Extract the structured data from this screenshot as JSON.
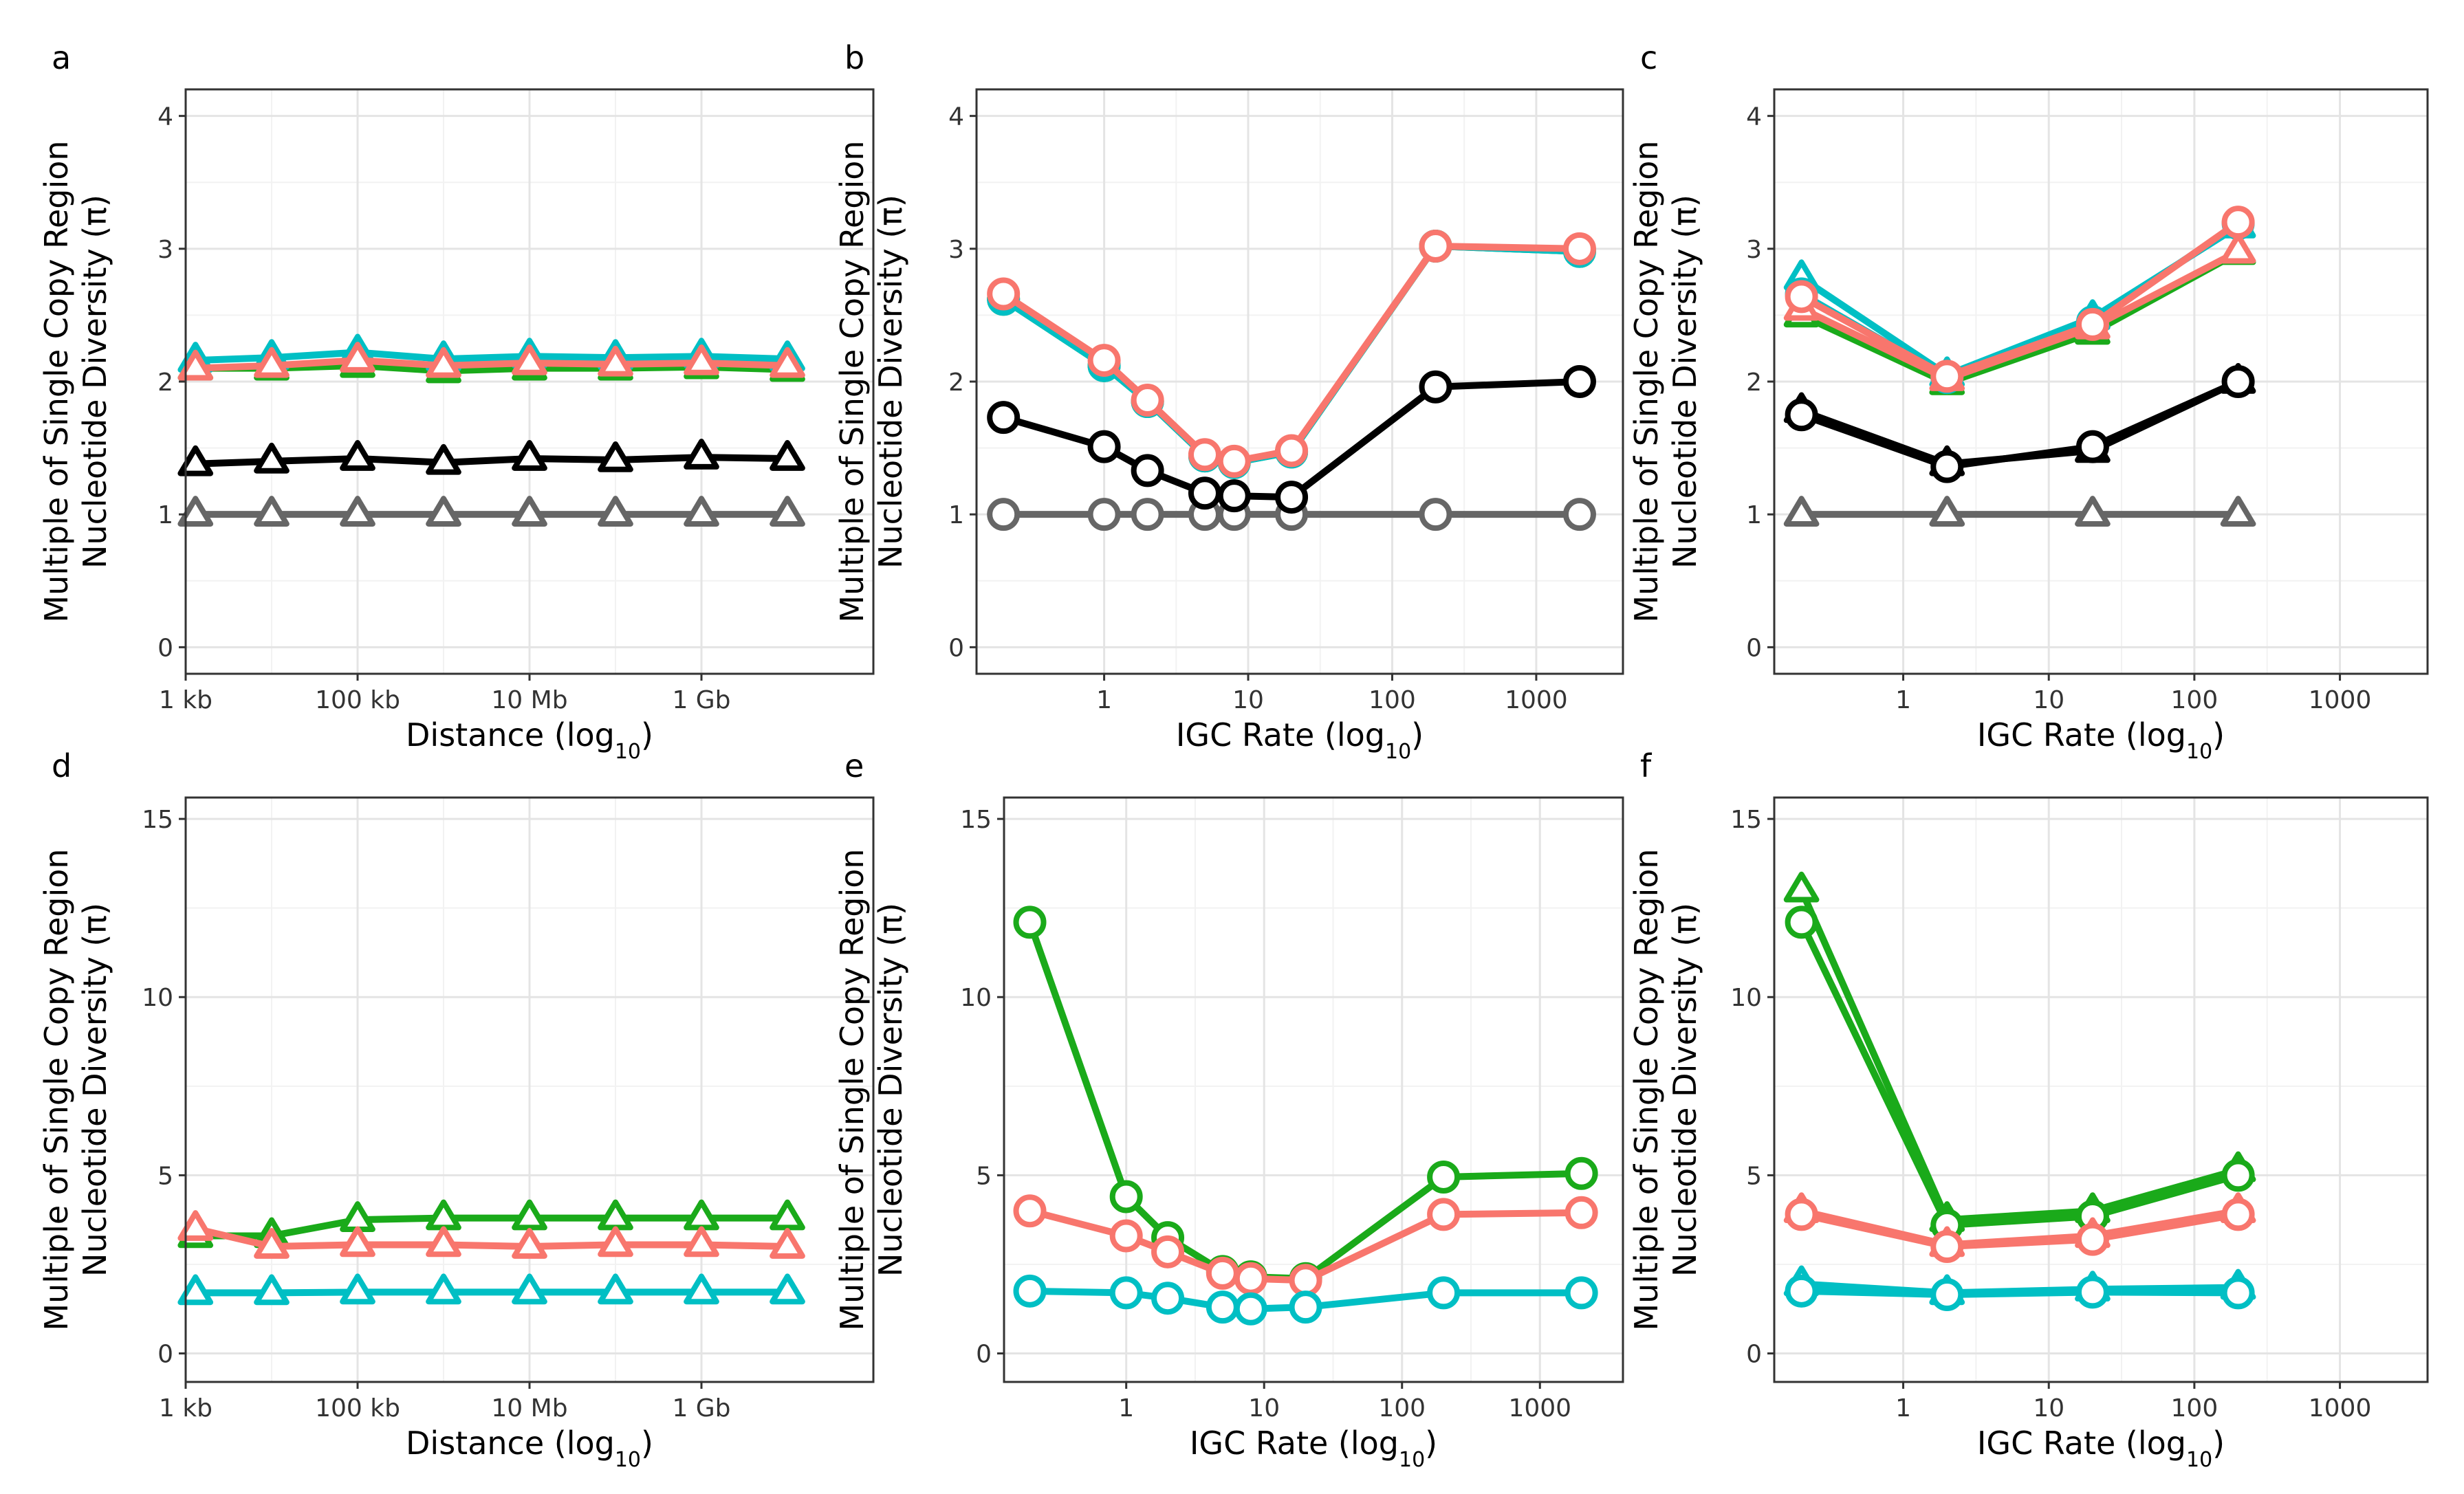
{
  "figure": {
    "ylabel_line1": "Multiple of Single Copy Region",
    "ylabel_line2": "Nucleotide Diversity (π)",
    "colors": {
      "black": "#000000",
      "grey": "#666666",
      "green": "#1AAA1A",
      "red": "#F8766D",
      "cyan": "#00BFC4"
    }
  },
  "chart_data": [
    {
      "panel": "a",
      "type": "line",
      "xlabel": "Distance (log",
      "xlabel_sub": "10",
      "xlabel_end": ")",
      "xscale": "log",
      "xlim": [
        1000,
        100000000000.0
      ],
      "xticks": [
        {
          "v": 1000,
          "label": "1 kb"
        },
        {
          "v": 100000,
          "label": "100 kb"
        },
        {
          "v": 10000000,
          "label": "10 Mb"
        },
        {
          "v": 1000000000,
          "label": "1 Gb"
        }
      ],
      "ylim": [
        -0.2,
        4.2
      ],
      "yticks": [
        {
          "v": 0,
          "label": "0"
        },
        {
          "v": 1,
          "label": "1"
        },
        {
          "v": 2,
          "label": "2"
        },
        {
          "v": 3,
          "label": "3"
        },
        {
          "v": 4,
          "label": "4"
        }
      ],
      "series": [
        {
          "color": "grey",
          "marker": "triangle",
          "x": [
            1300,
            10000,
            100000,
            1000000,
            10000000,
            100000000,
            1000000000,
            10000000000
          ],
          "y": [
            1.0,
            1.0,
            1.0,
            1.0,
            1.0,
            1.0,
            1.0,
            1.0
          ]
        },
        {
          "color": "black",
          "marker": "triangle",
          "x": [
            1300,
            10000,
            100000,
            1000000,
            10000000,
            100000000,
            1000000000,
            10000000000
          ],
          "y": [
            1.38,
            1.4,
            1.42,
            1.39,
            1.42,
            1.41,
            1.43,
            1.42
          ]
        },
        {
          "color": "green",
          "marker": "triangle",
          "x": [
            1300,
            10000,
            100000,
            1000000,
            10000000,
            100000000,
            1000000000,
            10000000000
          ],
          "y": [
            2.1,
            2.1,
            2.12,
            2.08,
            2.1,
            2.1,
            2.11,
            2.09
          ]
        },
        {
          "color": "cyan",
          "marker": "triangle",
          "x": [
            1300,
            10000,
            100000,
            1000000,
            10000000,
            100000000,
            1000000000,
            10000000000
          ],
          "y": [
            2.16,
            2.18,
            2.22,
            2.17,
            2.19,
            2.18,
            2.19,
            2.17
          ]
        },
        {
          "color": "red",
          "marker": "triangle",
          "x": [
            1300,
            10000,
            100000,
            1000000,
            10000000,
            100000000,
            1000000000,
            10000000000
          ],
          "y": [
            2.1,
            2.12,
            2.16,
            2.12,
            2.14,
            2.13,
            2.14,
            2.12
          ]
        }
      ]
    },
    {
      "panel": "b",
      "type": "line",
      "xlabel": "IGC Rate (log",
      "xlabel_sub": "10",
      "xlabel_end": ")",
      "xscale": "log",
      "xlim": [
        0.13,
        4000
      ],
      "xticks": [
        {
          "v": 1,
          "label": "1"
        },
        {
          "v": 10,
          "label": "10"
        },
        {
          "v": 100,
          "label": "100"
        },
        {
          "v": 1000,
          "label": "1000"
        }
      ],
      "ylim": [
        -0.2,
        4.2
      ],
      "yticks": [
        {
          "v": 0,
          "label": "0"
        },
        {
          "v": 1,
          "label": "1"
        },
        {
          "v": 2,
          "label": "2"
        },
        {
          "v": 3,
          "label": "3"
        },
        {
          "v": 4,
          "label": "4"
        }
      ],
      "series": [
        {
          "color": "grey",
          "marker": "circle",
          "x": [
            0.2,
            1,
            2,
            5,
            8,
            20,
            200,
            2000
          ],
          "y": [
            1.0,
            1.0,
            1.0,
            1.0,
            1.0,
            1.0,
            1.0,
            1.0
          ]
        },
        {
          "color": "black",
          "marker": "circle",
          "x": [
            0.2,
            1,
            2,
            5,
            8,
            20,
            200,
            2000
          ],
          "y": [
            1.73,
            1.51,
            1.33,
            1.16,
            1.14,
            1.13,
            1.96,
            2.0
          ]
        },
        {
          "color": "green",
          "marker": "circle",
          "x": [
            0.2,
            1,
            2,
            5,
            8,
            20,
            200,
            2000
          ],
          "y": [
            2.62,
            2.12,
            1.85,
            1.44,
            1.39,
            1.47,
            3.02,
            2.98
          ]
        },
        {
          "color": "cyan",
          "marker": "circle",
          "x": [
            0.2,
            1,
            2,
            5,
            8,
            20,
            200,
            2000
          ],
          "y": [
            2.62,
            2.12,
            1.85,
            1.44,
            1.39,
            1.47,
            3.02,
            2.98
          ]
        },
        {
          "color": "red",
          "marker": "circle",
          "x": [
            0.2,
            1,
            2,
            5,
            8,
            20,
            200,
            2000
          ],
          "y": [
            2.66,
            2.16,
            1.86,
            1.45,
            1.4,
            1.48,
            3.02,
            3.0
          ]
        }
      ]
    },
    {
      "panel": "c",
      "type": "line",
      "xlabel": "IGC Rate (log",
      "xlabel_sub": "10",
      "xlabel_end": ")",
      "xscale": "log",
      "xlim": [
        0.13,
        4000
      ],
      "xticks": [
        {
          "v": 1,
          "label": "1"
        },
        {
          "v": 10,
          "label": "10"
        },
        {
          "v": 100,
          "label": "100"
        },
        {
          "v": 1000,
          "label": "1000"
        }
      ],
      "ylim": [
        -0.2,
        4.2
      ],
      "yticks": [
        {
          "v": 0,
          "label": "0"
        },
        {
          "v": 1,
          "label": "1"
        },
        {
          "v": 2,
          "label": "2"
        },
        {
          "v": 3,
          "label": "3"
        },
        {
          "v": 4,
          "label": "4"
        }
      ],
      "series": [
        {
          "color": "grey",
          "marker": "triangle",
          "x": [
            0.2,
            2,
            20,
            200
          ],
          "y": [
            1.0,
            1.0,
            1.0,
            1.0
          ]
        },
        {
          "color": "black",
          "marker": "triangle",
          "x": [
            0.2,
            2,
            20,
            200
          ],
          "y": [
            1.78,
            1.38,
            1.48,
            2.0
          ]
        },
        {
          "color": "black",
          "marker": "circle",
          "x": [
            0.2,
            2,
            20,
            200
          ],
          "y": [
            1.75,
            1.36,
            1.51,
            2.0
          ]
        },
        {
          "color": "green",
          "marker": "triangle",
          "x": [
            0.2,
            2,
            20,
            200
          ],
          "y": [
            2.5,
            1.99,
            2.37,
            2.97
          ]
        },
        {
          "color": "cyan",
          "marker": "triangle",
          "x": [
            0.2,
            2,
            20,
            200
          ],
          "y": [
            2.78,
            2.05,
            2.48,
            3.17
          ]
        },
        {
          "color": "cyan",
          "marker": "circle",
          "x": [
            0.2,
            2,
            20,
            200
          ],
          "y": [
            2.66,
            2.03,
            2.45,
            3.19
          ]
        },
        {
          "color": "red",
          "marker": "triangle",
          "x": [
            0.2,
            2,
            20,
            200
          ],
          "y": [
            2.55,
            2.02,
            2.41,
            2.98
          ]
        },
        {
          "color": "red",
          "marker": "circle",
          "x": [
            0.2,
            2,
            20,
            200
          ],
          "y": [
            2.64,
            2.04,
            2.43,
            3.2
          ]
        }
      ]
    },
    {
      "panel": "d",
      "type": "line",
      "xlabel": "Distance (log",
      "xlabel_sub": "10",
      "xlabel_end": ")",
      "xscale": "log",
      "xlim": [
        1000,
        100000000000.0
      ],
      "xticks": [
        {
          "v": 1000,
          "label": "1 kb"
        },
        {
          "v": 100000,
          "label": "100 kb"
        },
        {
          "v": 10000000,
          "label": "10 Mb"
        },
        {
          "v": 1000000000,
          "label": "1 Gb"
        }
      ],
      "ylim": [
        -0.8,
        15.6
      ],
      "yticks": [
        {
          "v": 0,
          "label": "0"
        },
        {
          "v": 5,
          "label": "5"
        },
        {
          "v": 10,
          "label": "10"
        },
        {
          "v": 15,
          "label": "15"
        }
      ],
      "series": [
        {
          "color": "green",
          "marker": "triangle",
          "x": [
            1300,
            10000,
            100000,
            1000000,
            10000000,
            100000000,
            1000000000,
            10000000000
          ],
          "y": [
            3.3,
            3.3,
            3.75,
            3.8,
            3.8,
            3.8,
            3.8,
            3.8
          ]
        },
        {
          "color": "red",
          "marker": "triangle",
          "x": [
            1300,
            10000,
            100000,
            1000000,
            10000000,
            100000000,
            1000000000,
            10000000000
          ],
          "y": [
            3.5,
            3.0,
            3.05,
            3.05,
            3.0,
            3.05,
            3.05,
            3.0
          ]
        },
        {
          "color": "cyan",
          "marker": "triangle",
          "x": [
            1300,
            10000,
            100000,
            1000000,
            10000000,
            100000000,
            1000000000,
            10000000000
          ],
          "y": [
            1.7,
            1.7,
            1.72,
            1.72,
            1.72,
            1.72,
            1.72,
            1.72
          ]
        }
      ]
    },
    {
      "panel": "e",
      "type": "line",
      "xlabel": "IGC Rate (log",
      "xlabel_sub": "10",
      "xlabel_end": ")",
      "xscale": "log",
      "xlim": [
        0.13,
        4000
      ],
      "xticks": [
        {
          "v": 1,
          "label": "1"
        },
        {
          "v": 10,
          "label": "10"
        },
        {
          "v": 100,
          "label": "100"
        },
        {
          "v": 1000,
          "label": "1000"
        }
      ],
      "ylim": [
        -0.8,
        15.6
      ],
      "yticks": [
        {
          "v": 0,
          "label": "0"
        },
        {
          "v": 5,
          "label": "5"
        },
        {
          "v": 10,
          "label": "10"
        },
        {
          "v": 15,
          "label": "15"
        }
      ],
      "series": [
        {
          "color": "green",
          "marker": "circle",
          "x": [
            0.2,
            1,
            2,
            5,
            8,
            20,
            200,
            2000
          ],
          "y": [
            12.1,
            4.4,
            3.25,
            2.3,
            2.15,
            2.1,
            4.95,
            5.05
          ]
        },
        {
          "color": "red",
          "marker": "circle",
          "x": [
            0.2,
            1,
            2,
            5,
            8,
            20,
            200,
            2000
          ],
          "y": [
            4.0,
            3.3,
            2.85,
            2.25,
            2.1,
            2.05,
            3.9,
            3.95
          ]
        },
        {
          "color": "cyan",
          "marker": "circle",
          "x": [
            0.2,
            1,
            2,
            5,
            8,
            20,
            200,
            2000
          ],
          "y": [
            1.75,
            1.7,
            1.55,
            1.3,
            1.25,
            1.3,
            1.7,
            1.7
          ]
        }
      ]
    },
    {
      "panel": "f",
      "type": "line",
      "xlabel": "IGC Rate (log",
      "xlabel_sub": "10",
      "xlabel_end": ")",
      "xscale": "log",
      "xlim": [
        0.13,
        4000
      ],
      "xticks": [
        {
          "v": 1,
          "label": "1"
        },
        {
          "v": 10,
          "label": "10"
        },
        {
          "v": 100,
          "label": "100"
        },
        {
          "v": 1000,
          "label": "1000"
        }
      ],
      "ylim": [
        -0.8,
        15.6
      ],
      "yticks": [
        {
          "v": 0,
          "label": "0"
        },
        {
          "v": 5,
          "label": "5"
        },
        {
          "v": 10,
          "label": "10"
        },
        {
          "v": 15,
          "label": "15"
        }
      ],
      "series": [
        {
          "color": "green",
          "marker": "triangle",
          "x": [
            0.2,
            2,
            20,
            200
          ],
          "y": [
            13.0,
            3.75,
            4.0,
            5.15
          ]
        },
        {
          "color": "green",
          "marker": "circle",
          "x": [
            0.2,
            2,
            20,
            200
          ],
          "y": [
            12.1,
            3.6,
            3.85,
            5.0
          ]
        },
        {
          "color": "red",
          "marker": "triangle",
          "x": [
            0.2,
            2,
            20,
            200
          ],
          "y": [
            4.0,
            3.05,
            3.3,
            4.0
          ]
        },
        {
          "color": "red",
          "marker": "circle",
          "x": [
            0.2,
            2,
            20,
            200
          ],
          "y": [
            3.9,
            3.0,
            3.2,
            3.9
          ]
        },
        {
          "color": "cyan",
          "marker": "triangle",
          "x": [
            0.2,
            2,
            20,
            200
          ],
          "y": [
            1.95,
            1.7,
            1.8,
            1.85
          ]
        },
        {
          "color": "cyan",
          "marker": "circle",
          "x": [
            0.2,
            2,
            20,
            200
          ],
          "y": [
            1.75,
            1.65,
            1.72,
            1.7
          ]
        }
      ]
    }
  ]
}
